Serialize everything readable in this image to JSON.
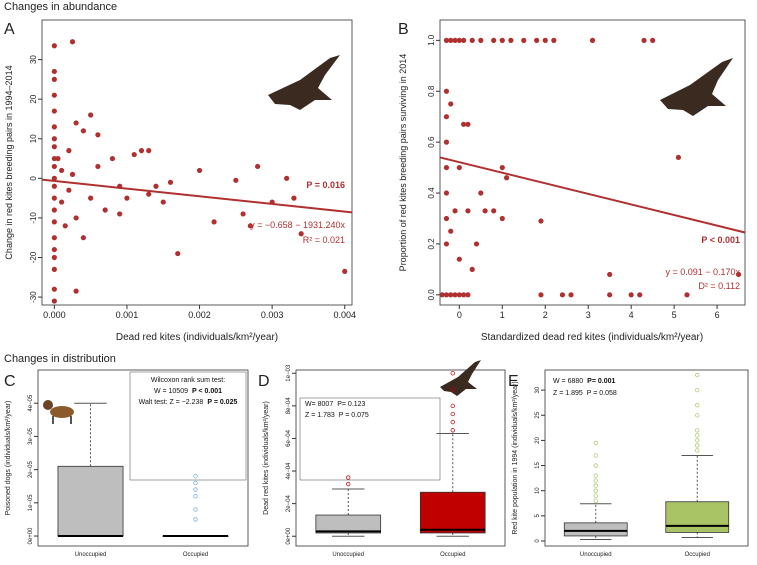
{
  "section_titles": [
    "Changes in abundance",
    "Changes in distribution"
  ],
  "chart_data": [
    {
      "type": "scatter",
      "panel": "A",
      "color": "#b03030",
      "x_label": "Dead red kites (individuals/km²/year)",
      "y_label": "Change in red kites breeding pairs in 1994–2014",
      "xlim": [
        -0.00017,
        0.0041
      ],
      "ylim": [
        -32,
        40
      ],
      "xticks": [
        {
          "value": 0,
          "label": "0.000"
        },
        {
          "value": 0.001,
          "label": "0.001"
        },
        {
          "value": 0.002,
          "label": "0.002"
        },
        {
          "value": 0.003,
          "label": "0.003"
        },
        {
          "value": 0.004,
          "label": "0.004"
        }
      ],
      "yticks": [
        -30,
        -20,
        -10,
        0,
        10,
        20,
        30
      ],
      "x": [
        0,
        0,
        0,
        0,
        0,
        0,
        0,
        0,
        0,
        0,
        0,
        0,
        0,
        0,
        0,
        0,
        0,
        0,
        0,
        0,
        0,
        5e-05,
        0.0001,
        0.0001,
        0.00015,
        0.0002,
        0.0002,
        0.00025,
        0.00025,
        0.0003,
        0.0003,
        0.0004,
        0.0004,
        0.0005,
        0.0005,
        0.0006,
        0.0007,
        0.0008,
        0.0009,
        0.001,
        0.0011,
        0.0012,
        0.0013,
        0.0013,
        0.0014,
        0.0015,
        0.0016,
        0.0017,
        0.002,
        0.0022,
        0.0025,
        0.0026,
        0.0027,
        0.0028,
        0.0033,
        0.0034,
        0.004,
        0.0032,
        0.003,
        0.0009,
        0.0006,
        0.0003
      ],
      "y": [
        33.5,
        27,
        25,
        21,
        17,
        13,
        10,
        8,
        5,
        3,
        0,
        -2,
        -5,
        -8,
        -11,
        -15,
        -18,
        -20,
        -23,
        -28,
        -31,
        5,
        -6,
        2,
        -12,
        7,
        -3,
        34.5,
        1,
        -10,
        -28.5,
        12,
        -15,
        16,
        -5,
        3,
        -8,
        5,
        -2,
        -5,
        6,
        7,
        7,
        -4,
        -2,
        -6,
        -1,
        -19,
        2,
        -11,
        -0.5,
        -9,
        -12,
        3,
        -5,
        -14,
        -23.5,
        0,
        -6,
        -9,
        11,
        14
      ],
      "fit_x": [
        -0.00017,
        0.0041
      ],
      "fit_y": [
        -0.33,
        -8.6
      ],
      "annotations": [
        [
          "P = 0.016"
        ],
        [
          "y = −0.658 − 1931.240x"
        ],
        [
          "R² = 0.021"
        ]
      ]
    },
    {
      "type": "scatter",
      "panel": "B",
      "color": "#b03030",
      "x_label": "Standardized dead red kites (individuals/km²/year)",
      "y_label": "Proportion of red kites breeding pairs surviving in 2014",
      "xlim": [
        -0.45,
        6.65
      ],
      "ylim": [
        -0.04,
        1.08
      ],
      "xticks": [
        0,
        1,
        2,
        3,
        4,
        5,
        6
      ],
      "yticks": [
        {
          "value": 0,
          "label": "0.0"
        },
        {
          "value": 0.2,
          "label": "0.2"
        },
        {
          "value": 0.4,
          "label": "0.4"
        },
        {
          "value": 0.6,
          "label": "0.6"
        },
        {
          "value": 0.8,
          "label": "0.8"
        },
        {
          "value": 1,
          "label": "1.0"
        }
      ],
      "x": [
        -0.3,
        -0.2,
        -0.1,
        0,
        0.1,
        0.3,
        0.5,
        0.8,
        1.0,
        1.2,
        1.5,
        1.8,
        2.0,
        2.2,
        3.1,
        4.3,
        4.5,
        -0.4,
        -0.3,
        -0.2,
        -0.1,
        0,
        0.1,
        0.2,
        1.9,
        2.4,
        2.6,
        3.5,
        4.0,
        4.2,
        5.3,
        -0.3,
        -0.3,
        -0.3,
        -0.3,
        -0.3,
        -0.3,
        -0.3,
        -0.2,
        -0.2,
        0,
        0.1,
        0.2,
        0.2,
        0.3,
        0.4,
        0.5,
        0.6,
        0.8,
        1.0,
        1.0,
        1.1,
        1.9,
        3.5,
        5.1,
        6.5,
        0,
        -0.1
      ],
      "y": [
        1,
        1,
        1,
        1,
        1,
        1,
        1,
        1,
        1,
        1,
        1,
        1,
        1,
        1,
        1,
        1,
        1,
        0,
        0,
        0,
        0,
        0,
        0,
        0,
        0,
        0,
        0,
        0,
        0,
        0,
        0,
        0.8,
        0.7,
        0.6,
        0.5,
        0.4,
        0.3,
        0.2,
        0.75,
        0.25,
        0.5,
        0.67,
        0.67,
        0.33,
        0.1,
        0.2,
        0.4,
        0.33,
        0.33,
        0.5,
        0.3,
        0.46,
        0.29,
        0.08,
        0.54,
        0.08,
        0.14,
        0.33
      ],
      "fit_x": [
        -0.45,
        6.65
      ],
      "fit_y": [
        0.54,
        0.245
      ],
      "annotations": [
        [
          "P < 0.001"
        ],
        [
          "y = 0.091 − 0.170x"
        ],
        [
          "D² = 0.112"
        ]
      ]
    },
    {
      "type": "box",
      "panel": "C",
      "y_label": "Poisoned dogs (individuals/km²/year)",
      "ylim": [
        -3e-06,
        5e-05
      ],
      "yticks": [
        {
          "value": 0,
          "label": "0e+00"
        },
        {
          "value": 1e-05,
          "label": "1e−05"
        },
        {
          "value": 2e-05,
          "label": "2e−05"
        },
        {
          "value": 3e-05,
          "label": "3e−05"
        },
        {
          "value": 4e-05,
          "label": "4e−05"
        }
      ],
      "categories": [
        "Unoccupied",
        "Occupied"
      ],
      "colors": [
        "#bebebe",
        "#ffffff"
      ],
      "flier_color": "#6fa8dc",
      "boxes": [
        {
          "whislo": 0,
          "q1": 0,
          "med": 0,
          "q3": 2.1e-05,
          "whishi": 4e-05,
          "fliers": []
        },
        {
          "whislo": 0,
          "q1": 0,
          "med": 0,
          "q3": 0,
          "whishi": 0,
          "fliers": [
            5e-06,
            8e-06,
            1.2e-05,
            1.4e-05,
            1.6e-05,
            1.8e-05
          ]
        }
      ],
      "annotations": [
        [
          "Wilcoxon rank sum test:"
        ],
        [
          "W = 10509",
          "P < 0.001"
        ],
        [
          "Walt test: Z = −2.238",
          "P = 0.025"
        ]
      ]
    },
    {
      "type": "box",
      "panel": "D",
      "y_label": "Dead red kites (individuals/km²/year)",
      "ylim": [
        -6e-05,
        0.00102
      ],
      "yticks": [
        {
          "value": 0,
          "label": "0e+00"
        },
        {
          "value": 0.0002,
          "label": "2e−04"
        },
        {
          "value": 0.0004,
          "label": "4e−04"
        },
        {
          "value": 0.0006,
          "label": "6e−04"
        },
        {
          "value": 0.0008,
          "label": "8e−04"
        },
        {
          "value": 0.001,
          "label": "1e−03"
        }
      ],
      "categories": [
        "Unoccupied",
        "Occupied"
      ],
      "colors": [
        "#bebebe",
        "#c00000"
      ],
      "flier_color": "#c00000",
      "boxes": [
        {
          "whislo": 0,
          "q1": 2e-05,
          "med": 3e-05,
          "q3": 0.00013,
          "whishi": 0.00029,
          "fliers": [
            0.00032,
            0.00036
          ]
        },
        {
          "whislo": 0,
          "q1": 2e-05,
          "med": 4e-05,
          "q3": 0.00027,
          "whishi": 0.00063,
          "fliers": [
            0.00065,
            0.0007,
            0.00075,
            0.0008,
            0.0009,
            0.001
          ]
        }
      ],
      "annotations": [
        [
          "W= 8007",
          "P= 0.123"
        ],
        [
          "Z = 1.783",
          "P = 0.075"
        ]
      ]
    },
    {
      "type": "box",
      "panel": "E",
      "y_label": "Red kite population in 1994 (individuals/km²/year)",
      "ylim": [
        -1,
        34
      ],
      "yticks": [
        0,
        5,
        10,
        15,
        20,
        25,
        30
      ],
      "categories": [
        "Unoccupied",
        "Occupied"
      ],
      "colors": [
        "#bebebe",
        "#a8c464"
      ],
      "flier_color": "#a8c464",
      "boxes": [
        {
          "whislo": 0.3,
          "q1": 1,
          "med": 2,
          "q3": 3.6,
          "whishi": 7.4,
          "fliers": [
            8,
            9,
            10,
            11,
            12,
            13,
            15,
            17,
            19.5
          ]
        },
        {
          "whislo": 0.7,
          "q1": 1.7,
          "med": 3,
          "q3": 7.8,
          "whishi": 17,
          "fliers": [
            18,
            19,
            20,
            21,
            22,
            25,
            27,
            30,
            33
          ]
        }
      ],
      "annotations": [
        [
          "W = 6880",
          "P= 0.001"
        ],
        [
          "Z = 1.895",
          "P = 0.058"
        ]
      ]
    }
  ]
}
